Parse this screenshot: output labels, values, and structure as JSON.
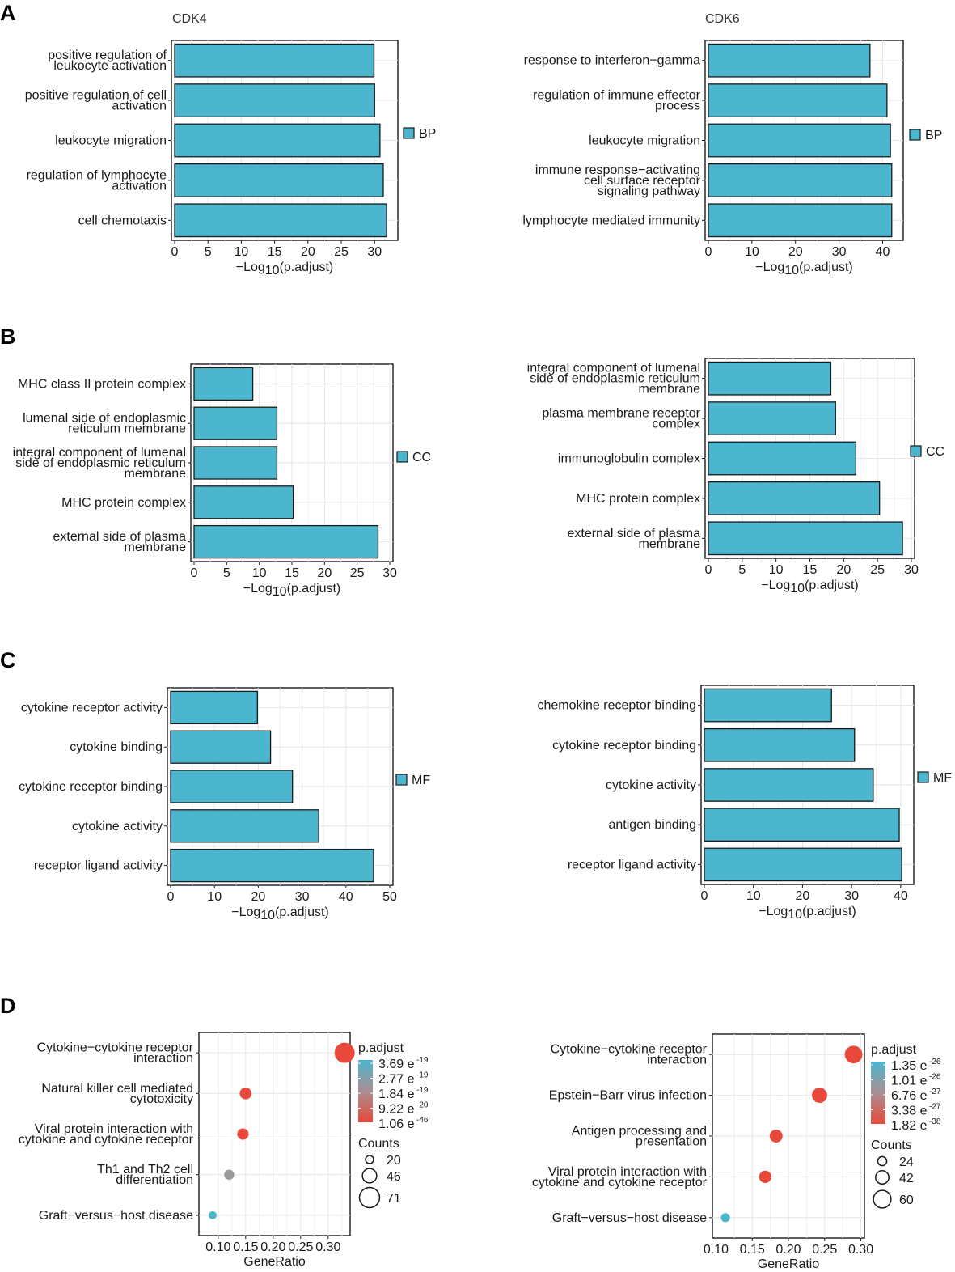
{
  "panel_labels": [
    "A",
    "B",
    "C",
    "D"
  ],
  "colors": {
    "bar": "#4db6cf",
    "high": "#e8493a",
    "mid": "#9a9a9a",
    "low": "#4db6cf",
    "grid": "#e6e6e6"
  },
  "chart_data": [
    {
      "panel": "A",
      "type": "bar",
      "orientation": "horizontal",
      "title": "CDK4",
      "categories": [
        "positive regulation of|leukocyte activation",
        "positive regulation of cell|activation",
        "leukocyte migration",
        "regulation of lymphocyte|activation",
        "cell chemotaxis"
      ],
      "values": [
        29.9,
        30.0,
        30.8,
        31.3,
        31.8
      ],
      "xlabel": "−Log10(p.adjust)",
      "xlim": [
        0,
        33
      ],
      "xticks": [
        0,
        5,
        10,
        15,
        20,
        25,
        30
      ],
      "legend": "BP"
    },
    {
      "panel": "A",
      "type": "bar",
      "orientation": "horizontal",
      "title": "CDK6",
      "categories": [
        "response to interferon−gamma",
        "regulation of immune effector|process",
        "leukocyte migration",
        "immune response−activating|cell surface receptor|signaling pathway",
        "lymphocyte mediated immunity"
      ],
      "values": [
        37.1,
        41.0,
        41.8,
        42.1,
        42.1
      ],
      "xlabel": "−Log10(p.adjust)",
      "xlim": [
        0,
        44
      ],
      "xticks": [
        0,
        10,
        20,
        30,
        40
      ],
      "legend": "BP"
    },
    {
      "panel": "B",
      "type": "bar",
      "orientation": "horizontal",
      "title": "",
      "categories": [
        "MHC class II protein complex",
        "lumenal side of endoplasmic|reticulum membrane",
        "integral component of lumenal|side of endoplasmic reticulum|membrane",
        "MHC protein complex",
        "external side of plasma|membrane"
      ],
      "values": [
        9.0,
        12.7,
        12.7,
        15.2,
        28.2
      ],
      "xlabel": "−Log10(p.adjust)",
      "xlim": [
        0,
        30
      ],
      "xticks": [
        0,
        5,
        10,
        15,
        20,
        25,
        30
      ],
      "legend": "CC"
    },
    {
      "panel": "B",
      "type": "bar",
      "orientation": "horizontal",
      "title": "",
      "categories": [
        "integral component of lumenal|side of endoplasmic reticulum|membrane",
        "plasma membrane receptor|complex",
        "immunoglobulin complex",
        "MHC protein complex",
        "external side of plasma|membrane"
      ],
      "values": [
        18.1,
        18.8,
        21.8,
        25.3,
        28.7
      ],
      "xlabel": "−Log10(p.adjust)",
      "xlim": [
        0,
        30
      ],
      "xticks": [
        0,
        5,
        10,
        15,
        20,
        25,
        30
      ],
      "legend": "CC"
    },
    {
      "panel": "C",
      "type": "bar",
      "orientation": "horizontal",
      "title": "",
      "categories": [
        "cytokine receptor activity",
        "cytokine binding",
        "cytokine receptor binding",
        "cytokine activity",
        "receptor ligand activity"
      ],
      "values": [
        19.8,
        22.8,
        27.8,
        33.8,
        46.3
      ],
      "xlabel": "−Log10(p.adjust)",
      "xlim": [
        0,
        50
      ],
      "xticks": [
        0,
        10,
        20,
        30,
        40,
        50
      ],
      "legend": "MF"
    },
    {
      "panel": "C",
      "type": "bar",
      "orientation": "horizontal",
      "title": "",
      "categories": [
        "chemokine receptor binding",
        "cytokine receptor binding",
        "cytokine activity",
        "antigen binding",
        "receptor ligand activity"
      ],
      "values": [
        25.9,
        30.6,
        34.4,
        39.7,
        40.2
      ],
      "xlabel": "−Log10(p.adjust)",
      "xlim": [
        0,
        42
      ],
      "xticks": [
        0,
        10,
        20,
        30,
        40
      ],
      "legend": "MF"
    },
    {
      "panel": "D",
      "type": "scatter",
      "title": "",
      "categories": [
        "Cytokine−cytokine receptor|interaction",
        "Natural killer cell mediated|cytotoxicity",
        "Viral protein interaction with|cytokine and cytokine receptor",
        "Th1 and Th2 cell|differentiation",
        "Graft−versus−host disease"
      ],
      "x": [
        0.33,
        0.15,
        0.145,
        0.12,
        0.09
      ],
      "counts": [
        71,
        36,
        34,
        28,
        20
      ],
      "color_class": [
        "high",
        "high",
        "high",
        "mid",
        "low"
      ],
      "xlabel": "GeneRatio",
      "xlim": [
        0.065,
        0.34
      ],
      "xticks": [
        "0.10",
        "0.15",
        "0.20",
        "0.25",
        "0.30"
      ],
      "legend_title": "p.adjust",
      "legend_values": [
        [
          "3.69 e",
          "-19"
        ],
        [
          "2.77 e",
          "-19"
        ],
        [
          "1.84 e",
          "-19"
        ],
        [
          "9.22 e",
          "-20"
        ],
        [
          "1.06 e",
          "-46"
        ]
      ],
      "size_title": "Counts",
      "size_values": [
        20,
        46,
        71
      ]
    },
    {
      "panel": "D",
      "type": "scatter",
      "title": "",
      "categories": [
        "Cytokine−cytokine receptor|interaction",
        "Epstein−Barr virus infection",
        "Antigen processing and|presentation",
        "Viral protein interaction with|cytokine and cytokine receptor",
        "Graft−versus−host disease"
      ],
      "x": [
        0.29,
        0.243,
        0.183,
        0.168,
        0.113
      ],
      "counts": [
        60,
        50,
        40,
        38,
        24
      ],
      "color_class": [
        "high",
        "high",
        "high",
        "high",
        "low"
      ],
      "xlabel": "GeneRatio",
      "xlim": [
        0.095,
        0.305
      ],
      "xticks": [
        "0.10",
        "0.15",
        "0.20",
        "0.25",
        "0.30"
      ],
      "legend_title": "p.adjust",
      "legend_values": [
        [
          "1.35 e",
          "-26"
        ],
        [
          "1.01 e",
          "-26"
        ],
        [
          "6.76 e",
          "-27"
        ],
        [
          "3.38 e",
          "-27"
        ],
        [
          "1.82 e",
          "-38"
        ]
      ],
      "size_title": "Counts",
      "size_values": [
        24,
        42,
        60
      ]
    }
  ]
}
